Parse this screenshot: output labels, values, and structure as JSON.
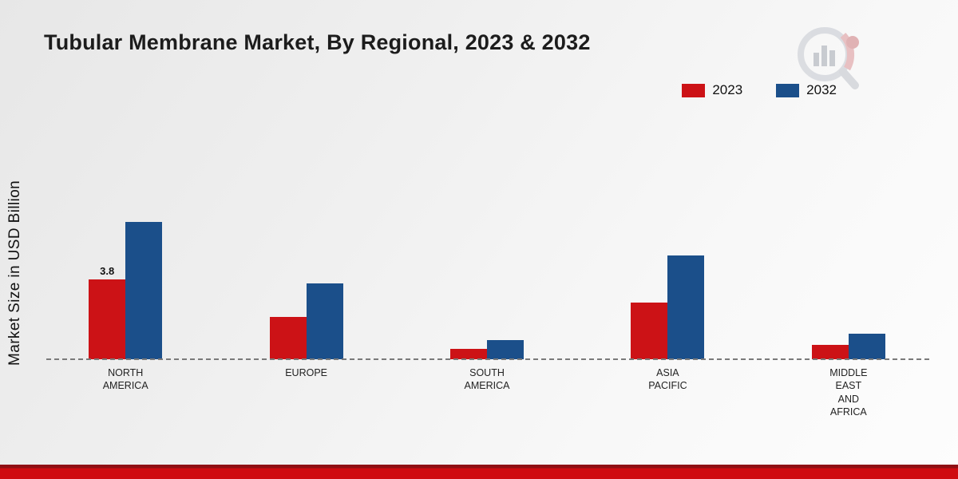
{
  "page": {
    "footer_color_top": "#8f1014",
    "footer_color_main": "#cf0b10"
  },
  "chart_data": {
    "type": "bar",
    "title": "Tubular Membrane Market, By Regional, 2023 & 2032",
    "xlabel": "",
    "ylabel": "Market Size in USD Billion",
    "categories": [
      "NORTH\nAMERICA",
      "EUROPE",
      "SOUTH\nAMERICA",
      "ASIA\nPACIFIC",
      "MIDDLE\nEAST\nAND\nAFRICA"
    ],
    "series": [
      {
        "name": "2023",
        "color": "#cc1216",
        "values": [
          3.8,
          2.0,
          0.5,
          2.7,
          0.7
        ],
        "labels": [
          "3.8",
          "",
          "",
          "",
          ""
        ]
      },
      {
        "name": "2032",
        "color": "#1b4f8a",
        "values": [
          6.5,
          3.6,
          0.9,
          4.9,
          1.2
        ],
        "labels": [
          "",
          "",
          "",
          "",
          ""
        ]
      }
    ],
    "ylim": [
      0,
      7
    ],
    "grid": false,
    "legend_position": "top-right",
    "baseline_style": "dashed"
  }
}
